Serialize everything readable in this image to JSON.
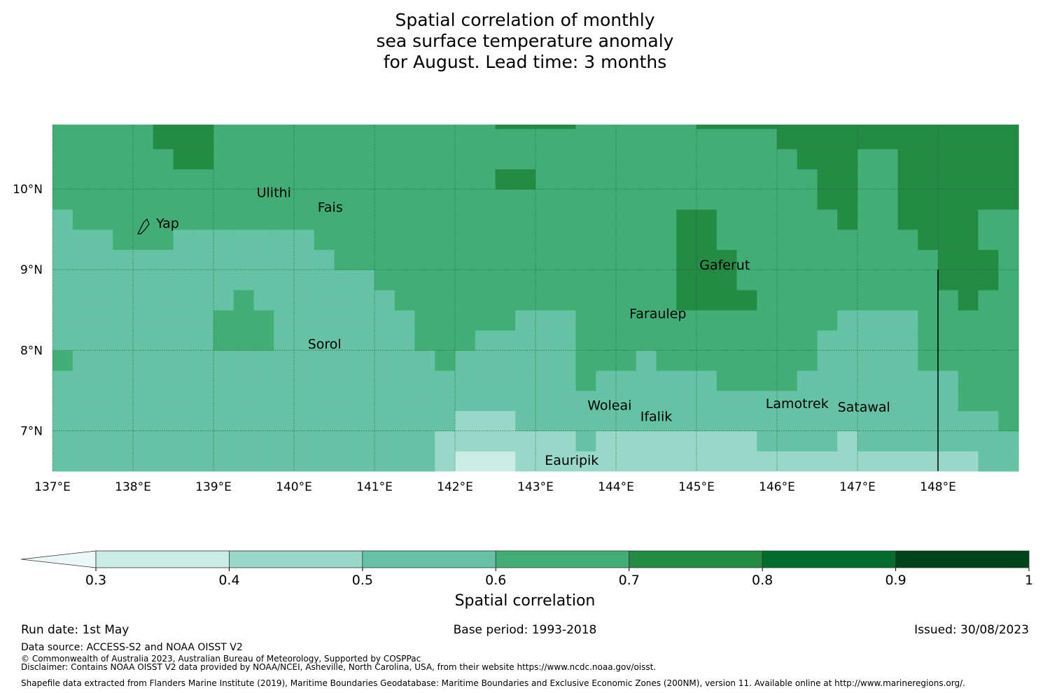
{
  "title": {
    "line1": "Spatial correlation of monthly",
    "line2": "sea surface temperature anomaly",
    "line3": "for August. Lead time: 3 months"
  },
  "map": {
    "lon_range": [
      137.0,
      149.0
    ],
    "lat_range": [
      6.5,
      10.8
    ],
    "grid_step": 0.25,
    "lon_ticks": [
      137,
      138,
      139,
      140,
      141,
      142,
      143,
      144,
      145,
      146,
      147,
      148
    ],
    "lon_tick_labels": [
      "137°E",
      "138°E",
      "139°E",
      "140°E",
      "141°E",
      "142°E",
      "143°E",
      "144°E",
      "145°E",
      "146°E",
      "147°E",
      "148°E"
    ],
    "lat_ticks": [
      7,
      8,
      9,
      10
    ],
    "lat_tick_labels": [
      "7°N",
      "8°N",
      "9°N",
      "10°N"
    ],
    "meridian_line_lon": 148.0,
    "meridian_line_lat_range": [
      6.5,
      9.0
    ],
    "places": [
      {
        "name": "Ulithi",
        "lon": 139.75,
        "lat": 9.9
      },
      {
        "name": "Fais",
        "lon": 140.45,
        "lat": 9.72
      },
      {
        "name": "Yap",
        "lon": 138.43,
        "lat": 9.52
      },
      {
        "name": "Gaferut",
        "lon": 145.35,
        "lat": 9.0
      },
      {
        "name": "Faraulep",
        "lon": 144.52,
        "lat": 8.4
      },
      {
        "name": "Sorol",
        "lon": 140.38,
        "lat": 8.02
      },
      {
        "name": "Woleai",
        "lon": 143.92,
        "lat": 7.26
      },
      {
        "name": "Ifalik",
        "lon": 144.5,
        "lat": 7.12
      },
      {
        "name": "Lamotrek",
        "lon": 146.25,
        "lat": 7.28
      },
      {
        "name": "Satawal",
        "lon": 147.08,
        "lat": 7.24
      },
      {
        "name": "Eauripik",
        "lon": 143.45,
        "lat": 6.58
      }
    ]
  },
  "colorbar": {
    "label": "Spatial correlation",
    "ticks": [
      "0.3",
      "0.4",
      "0.5",
      "0.6",
      "0.7",
      "0.8",
      "0.9",
      "1"
    ],
    "colors": {
      "below": "#ebf7f7",
      "c0": "#cbece4",
      "c1": "#99d8c9",
      "c2": "#65c2a4",
      "c3": "#42ae76",
      "c4": "#248b45",
      "c5": "#006d2c",
      "c6": "#00441b"
    }
  },
  "chart_data": {
    "type": "heatmap",
    "title": "Spatial correlation of monthly sea surface temperature anomaly for August. Lead time: 3 months",
    "xlabel": "",
    "ylabel": "",
    "colorbar_label": "Spatial correlation",
    "bins": [
      0.3,
      0.4,
      0.5,
      0.6,
      0.7,
      0.8,
      0.9,
      1.0
    ],
    "regions": [
      {
        "class": "0.7-0.8",
        "area": "North-west corner near 138.3°E, 10.5°N"
      },
      {
        "class": "0.7-0.8",
        "area": "North-east from 145.9°E to 149°E north of 9°N"
      },
      {
        "class": "0.7-0.8",
        "area": "Around Gaferut 144.7-145.6°E, 8.5-9.7°N"
      },
      {
        "class": "0.6-0.7",
        "area": "Central and northern Pacific band"
      },
      {
        "class": "0.5-0.6",
        "area": "Western and southern areas"
      },
      {
        "class": "0.4-0.5",
        "area": "South of 7°N between 141.6°E and 148.4°E"
      },
      {
        "class": "0.3-0.4",
        "area": "Small patch near 142-142.8°E, 6.5-6.75°N"
      }
    ]
  },
  "footer": {
    "run_date": "Run date: 1st May",
    "base_period": "Base period: 1993-2018",
    "issued": "Issued: 30/08/2023",
    "data_source": "Data source: ACCESS-S2 and NOAA OISST V2",
    "copyright": "© Commonwealth of Australia 2023, Australian Bureau of Meteorology, Supported by COSPPac",
    "disclaimer": "Disclaimer: Contains NOAA OISST V2 data provided by NOAA/NCEI, Asheville, North Carolina, USA, from their website https://www.ncdc.noaa.gov/oisst.",
    "shapefile": "Shapefile data extracted from Flanders Marine Institute (2019), Maritime Boundaries Geodatabase: Maritime Boundaries and Exclusive Economic Zones (200NM), version 11. Available online at http://www.marineregions.org/."
  }
}
